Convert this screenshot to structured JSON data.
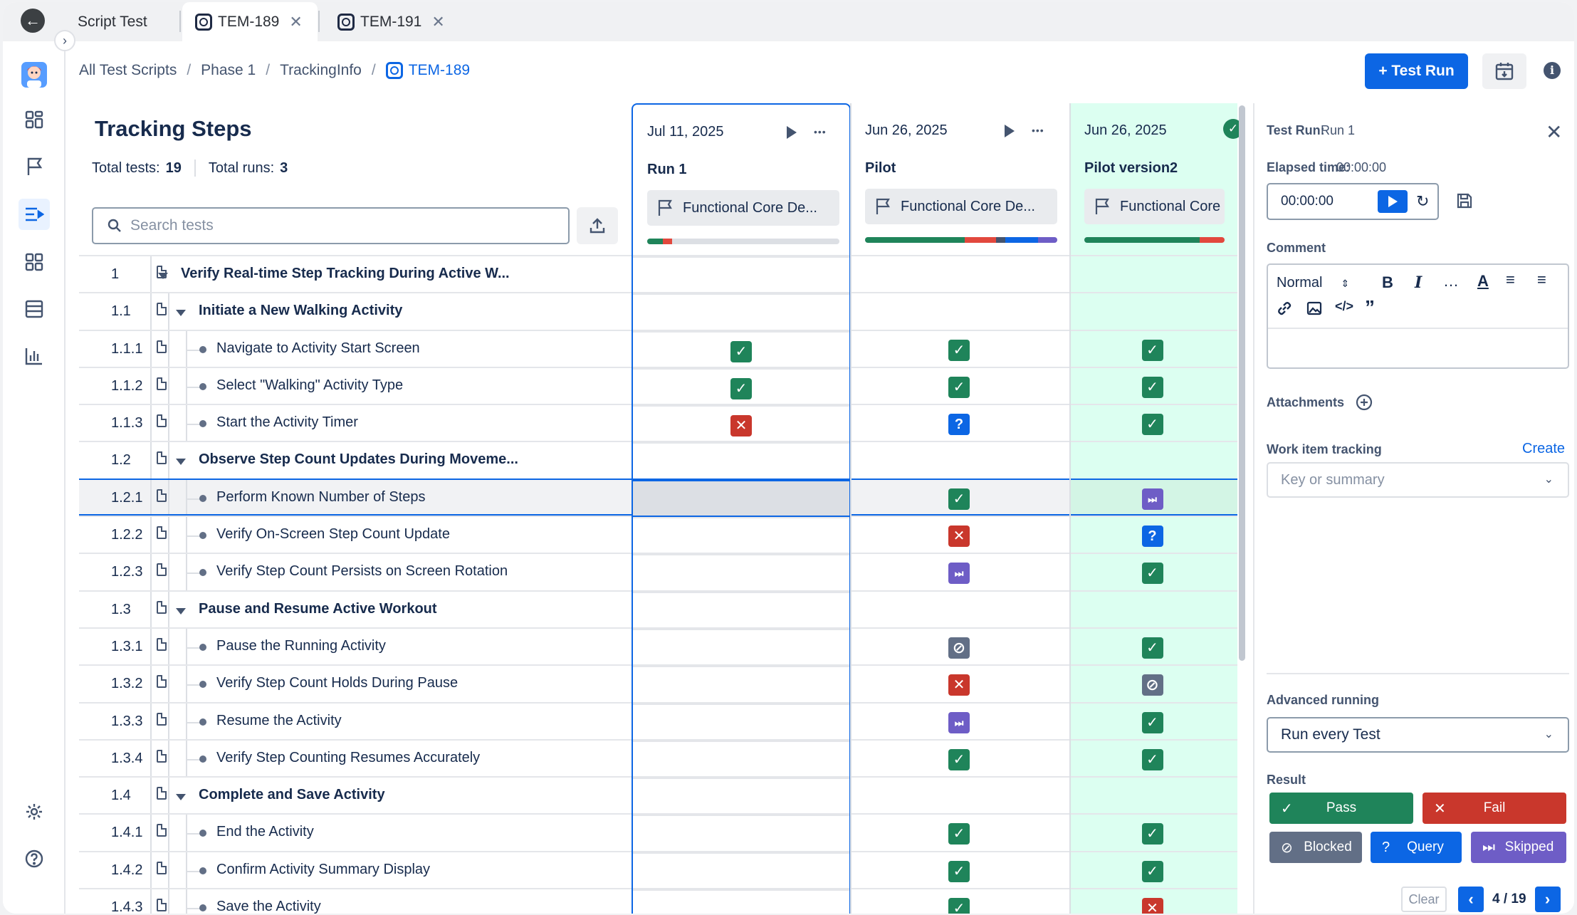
{
  "tabs": [
    {
      "label": "Script Test"
    },
    {
      "label": "TEM-189"
    },
    {
      "label": "TEM-191"
    }
  ],
  "breadcrumb": [
    "All Test Scripts",
    "Phase 1",
    "TrackingInfo",
    "TEM-189"
  ],
  "header": {
    "test_run_button": "+ Test Run"
  },
  "panel": {
    "title": "Tracking Steps",
    "total_tests_label": "Total tests:",
    "total_tests": "19",
    "total_runs_label": "Total runs:",
    "total_runs": "3",
    "search_placeholder": "Search tests"
  },
  "steps": [
    {
      "num": "1",
      "label": "Verify Real-time Step Tracking During Active W...",
      "level": 0,
      "group": true
    },
    {
      "num": "1.1",
      "label": "Initiate a New Walking Activity",
      "level": 1,
      "group": true
    },
    {
      "num": "1.1.1",
      "label": "Navigate to Activity Start Screen",
      "level": 2,
      "group": false
    },
    {
      "num": "1.1.2",
      "label": "Select \"Walking\" Activity Type",
      "level": 2,
      "group": false
    },
    {
      "num": "1.1.3",
      "label": "Start the Activity Timer",
      "level": 2,
      "group": false
    },
    {
      "num": "1.2",
      "label": "Observe Step Count Updates During Moveme...",
      "level": 1,
      "group": true
    },
    {
      "num": "1.2.1",
      "label": "Perform Known Number of Steps",
      "level": 2,
      "group": false,
      "selected": true
    },
    {
      "num": "1.2.2",
      "label": "Verify On-Screen Step Count Update",
      "level": 2,
      "group": false
    },
    {
      "num": "1.2.3",
      "label": "Verify Step Count Persists on Screen Rotation",
      "level": 2,
      "group": false
    },
    {
      "num": "1.3",
      "label": "Pause and Resume Active Workout",
      "level": 1,
      "group": true
    },
    {
      "num": "1.3.1",
      "label": "Pause the Running Activity",
      "level": 2,
      "group": false
    },
    {
      "num": "1.3.2",
      "label": "Verify Step Count Holds During Pause",
      "level": 2,
      "group": false
    },
    {
      "num": "1.3.3",
      "label": "Resume the Activity",
      "level": 2,
      "group": false
    },
    {
      "num": "1.3.4",
      "label": "Verify Step Counting Resumes Accurately",
      "level": 2,
      "group": false
    },
    {
      "num": "1.4",
      "label": "Complete and Save Activity",
      "level": 1,
      "group": true
    },
    {
      "num": "1.4.1",
      "label": "End the Activity",
      "level": 2,
      "group": false
    },
    {
      "num": "1.4.2",
      "label": "Confirm Activity Summary Display",
      "level": 2,
      "group": false
    },
    {
      "num": "1.4.3",
      "label": "Save the Activity",
      "level": 2,
      "group": false
    }
  ],
  "runs": [
    {
      "date": "Jul 11, 2025",
      "name": "Run 1",
      "environment": "Functional Core De...",
      "bar_colors": [
        "#1f845a",
        "#e2483d"
      ],
      "bar_fractions": [
        0.08,
        0.05
      ],
      "results": [
        "",
        "",
        "pass",
        "pass",
        "fail",
        "",
        "",
        "",
        "",
        "",
        "",
        "",
        "",
        "",
        "",
        "",
        "",
        ""
      ]
    },
    {
      "date": "Jun 26, 2025",
      "name": "Pilot",
      "environment": "Functional Core De...",
      "bar_colors": [
        "#1f845a",
        "#e2483d",
        "#44546f",
        "#0c66e4",
        "#6e5dc6"
      ],
      "bar_fractions": [
        0.52,
        0.16,
        0.05,
        0.17,
        0.1
      ],
      "results": [
        "",
        "",
        "pass",
        "pass",
        "query",
        "",
        "pass",
        "fail",
        "skip",
        "",
        "blocked",
        "fail",
        "skip",
        "pass",
        "",
        "pass",
        "pass",
        "pass"
      ]
    },
    {
      "date": "Jun 26, 2025",
      "name": "Pilot version2",
      "environment": "Functional Core Demo",
      "bar_colors": [
        "#1f845a",
        "#e2483d"
      ],
      "bar_fractions": [
        0.82,
        0.18
      ],
      "results": [
        "",
        "",
        "pass",
        "pass",
        "pass",
        "",
        "skip",
        "query",
        "pass",
        "",
        "pass",
        "blocked",
        "pass",
        "pass",
        "",
        "pass",
        "pass",
        "fail"
      ],
      "completed": true
    }
  ],
  "status_glyphs": {
    "pass": "✓",
    "fail": "✕",
    "query": "?",
    "skip": "⏭",
    "blocked": "⊘"
  },
  "side": {
    "test_run_label": "Test Run:",
    "test_run_value": "Run 1",
    "elapsed_label": "Elapsed time:",
    "elapsed_value": "00:00:00",
    "timer_value": "00:00:00",
    "comment_label": "Comment",
    "format_select": "Normal",
    "attachments_label": "Attachments",
    "work_item_label": "Work item tracking",
    "create_link": "Create",
    "work_item_placeholder": "Key or summary",
    "advanced_label": "Advanced running",
    "advanced_value": "Run every Test",
    "result_label": "Result",
    "pass_label": "Pass",
    "fail_label": "Fail",
    "blocked_label": "Blocked",
    "query_label": "Query",
    "skipped_label": "Skipped",
    "clear_label": "Clear",
    "pager": "4 / 19"
  },
  "colors": {
    "accent": "#0c66e4",
    "pass": "#1f845a",
    "fail": "#c9372c",
    "query": "#0c66e4",
    "skip": "#6e5dc6",
    "blocked": "#626f86",
    "completed_col": "#dcfff1"
  }
}
